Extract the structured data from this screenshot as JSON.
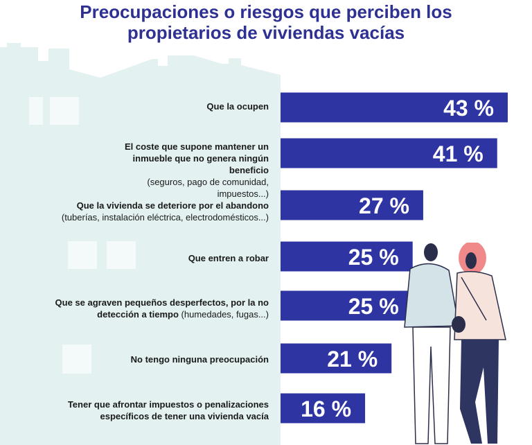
{
  "title_lines": [
    "Preocupaciones o riesgos que perciben los",
    "propietarios de viviendas vacías"
  ],
  "colors": {
    "title": "#2e3192",
    "bar": "#2e35a3",
    "bar_text": "#ffffff",
    "house": "#e3f1f0",
    "window": "#f3faf9"
  },
  "chart_data": {
    "type": "bar",
    "orientation": "horizontal",
    "title": "Preocupaciones o riesgos que perciben los propietarios de viviendas vacías",
    "xlabel": "",
    "ylabel": "",
    "unit": "%",
    "xlim": [
      0,
      43
    ],
    "categories": [
      "Que la ocupen",
      "El coste que supone mantener un inmueble que no genera ningún beneficio (seguros, pago de comunidad, impuestos...)",
      "Que la vivienda se deteriore por el abandono (tuberías, instalación eléctrica, electrodomésticos...)",
      "Que entren a robar",
      "Que se agraven pequeños desperfectos, por la no detección a tiempo (humedades, fugas...)",
      "No tengo ninguna preocupación",
      "Tener que afrontar impuestos o penalizaciones específicos de tener una vivienda vacía"
    ],
    "values": [
      43,
      41,
      27,
      25,
      25,
      21,
      16
    ],
    "data_labels": [
      "43 %",
      "41 %",
      "27 %",
      "25 %",
      "25 %",
      "21 %",
      "16 %"
    ],
    "category_labels": [
      {
        "main": "Que la ocupen",
        "sub": ""
      },
      {
        "main": "El coste que supone mantener un inmueble que no genera ningún beneficio",
        "sub": "(seguros, pago de comunidad, impuestos...)"
      },
      {
        "main": "Que la vivienda se deteriore por el abandono",
        "sub": "(tuberías, instalación eléctrica, electrodomésticos...)"
      },
      {
        "main": "Que entren a robar",
        "sub": ""
      },
      {
        "main": "Que se agraven pequeños desperfectos, por la no detección a tiempo",
        "sub": "(humedades, fugas...)"
      },
      {
        "main": "No tengo ninguna preocupación",
        "sub": ""
      },
      {
        "main": "Tener que afrontar impuestos o penalizaciones específicos de tener una vivienda vacía",
        "sub": ""
      }
    ]
  }
}
